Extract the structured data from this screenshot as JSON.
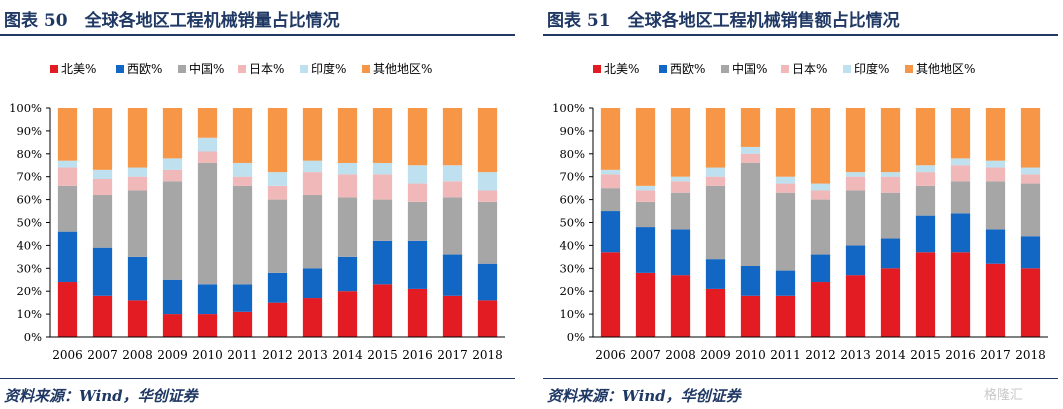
{
  "colors": {
    "北美%": "#e31b23",
    "西欧%": "#1266c4",
    "中国%": "#a6a6a6",
    "日本%": "#f0b8b8",
    "印度%": "#bfe0ee",
    "其他地区%": "#f79646"
  },
  "panels": [
    {
      "title": "图表 50　全球各地区工程机械销量占比情况",
      "source": "资料来源：Wind，华创证券"
    },
    {
      "title": "图表 51　全球各地区工程机械销售额占比情况",
      "source": "资料来源：Wind，华创证券"
    }
  ],
  "watermark": "格隆汇",
  "chart_data": [
    {
      "type": "bar",
      "stacked": true,
      "categories": [
        "2006",
        "2007",
        "2008",
        "2009",
        "2010",
        "2011",
        "2012",
        "2013",
        "2014",
        "2015",
        "2016",
        "2017",
        "2018"
      ],
      "yticks": [
        "0%",
        "10%",
        "20%",
        "30%",
        "40%",
        "50%",
        "60%",
        "70%",
        "80%",
        "90%",
        "100%"
      ],
      "ylim": [
        0,
        100
      ],
      "legend_position": "top",
      "series": [
        {
          "name": "北美%",
          "values": [
            24,
            18,
            16,
            10,
            10,
            11,
            15,
            17,
            20,
            23,
            21,
            18,
            16
          ]
        },
        {
          "name": "西欧%",
          "values": [
            22,
            21,
            19,
            15,
            13,
            12,
            13,
            13,
            15,
            19,
            21,
            18,
            16
          ]
        },
        {
          "name": "中国%",
          "values": [
            20,
            23,
            29,
            43,
            53,
            43,
            32,
            32,
            26,
            18,
            17,
            25,
            27
          ]
        },
        {
          "name": "日本%",
          "values": [
            8,
            7,
            6,
            5,
            5,
            4,
            6,
            10,
            10,
            11,
            8,
            7,
            5
          ]
        },
        {
          "name": "印度%",
          "values": [
            3,
            4,
            4,
            5,
            6,
            6,
            6,
            5,
            5,
            5,
            8,
            7,
            8
          ]
        },
        {
          "name": "其他地区%",
          "values": [
            23,
            27,
            26,
            22,
            13,
            24,
            28,
            23,
            24,
            24,
            25,
            25,
            28
          ]
        }
      ]
    },
    {
      "type": "bar",
      "stacked": true,
      "categories": [
        "2006",
        "2007",
        "2008",
        "2009",
        "2010",
        "2011",
        "2012",
        "2013",
        "2014",
        "2015",
        "2016",
        "2017",
        "2018"
      ],
      "yticks": [
        "0%",
        "10%",
        "20%",
        "30%",
        "40%",
        "50%",
        "60%",
        "70%",
        "80%",
        "90%",
        "100%"
      ],
      "ylim": [
        0,
        100
      ],
      "legend_position": "top",
      "series": [
        {
          "name": "北美%",
          "values": [
            37,
            28,
            27,
            21,
            18,
            18,
            24,
            27,
            30,
            37,
            37,
            32,
            30
          ]
        },
        {
          "name": "西欧%",
          "values": [
            18,
            20,
            20,
            13,
            13,
            11,
            12,
            13,
            13,
            16,
            17,
            15,
            14
          ]
        },
        {
          "name": "中国%",
          "values": [
            10,
            11,
            16,
            32,
            45,
            34,
            24,
            24,
            20,
            13,
            14,
            21,
            23
          ]
        },
        {
          "name": "日本%",
          "values": [
            6,
            5,
            5,
            4,
            4,
            4,
            4,
            6,
            7,
            6,
            7,
            6,
            4
          ]
        },
        {
          "name": "印度%",
          "values": [
            2,
            2,
            2,
            4,
            3,
            3,
            3,
            2,
            2,
            3,
            3,
            3,
            3
          ]
        },
        {
          "name": "其他地区%",
          "values": [
            27,
            34,
            30,
            26,
            17,
            30,
            33,
            28,
            28,
            25,
            22,
            23,
            26
          ]
        }
      ]
    }
  ]
}
